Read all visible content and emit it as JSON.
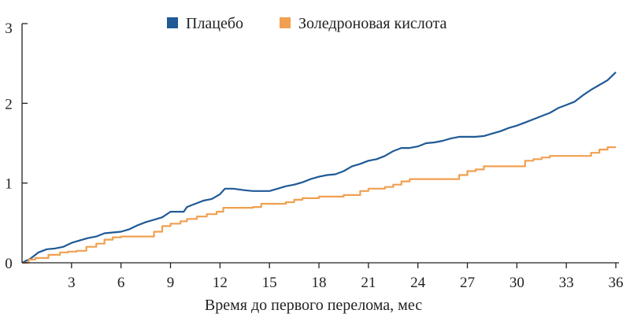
{
  "chart_data": {
    "type": "line",
    "title": "",
    "xlabel": "Время до первого перелома, мес",
    "ylabel": "",
    "xlim": [
      0,
      36
    ],
    "ylim": [
      0,
      3
    ],
    "x_ticks": [
      3,
      6,
      9,
      12,
      15,
      18,
      21,
      24,
      27,
      30,
      33,
      36
    ],
    "y_ticks": [
      0,
      1,
      2,
      3
    ],
    "legend_position": "top",
    "series": [
      {
        "name": "Плацебо",
        "color": "#1f5a96",
        "step": false,
        "points": [
          [
            0,
            0
          ],
          [
            0.5,
            0.05
          ],
          [
            1,
            0.13
          ],
          [
            1.5,
            0.17
          ],
          [
            2,
            0.18
          ],
          [
            2.5,
            0.2
          ],
          [
            3,
            0.25
          ],
          [
            3.5,
            0.28
          ],
          [
            4,
            0.31
          ],
          [
            4.5,
            0.33
          ],
          [
            5,
            0.37
          ],
          [
            5.5,
            0.38
          ],
          [
            6,
            0.39
          ],
          [
            6.5,
            0.42
          ],
          [
            7,
            0.47
          ],
          [
            7.5,
            0.51
          ],
          [
            8,
            0.54
          ],
          [
            8.5,
            0.57
          ],
          [
            9,
            0.64
          ],
          [
            9.8,
            0.64
          ],
          [
            10,
            0.7
          ],
          [
            10.5,
            0.74
          ],
          [
            11,
            0.78
          ],
          [
            11.5,
            0.8
          ],
          [
            12,
            0.86
          ],
          [
            12.3,
            0.93
          ],
          [
            12.8,
            0.93
          ],
          [
            13.5,
            0.91
          ],
          [
            14,
            0.9
          ],
          [
            15,
            0.9
          ],
          [
            15.5,
            0.93
          ],
          [
            16,
            0.96
          ],
          [
            16.5,
            0.98
          ],
          [
            17,
            1.01
          ],
          [
            17.5,
            1.05
          ],
          [
            18,
            1.08
          ],
          [
            18.5,
            1.1
          ],
          [
            19,
            1.11
          ],
          [
            19.5,
            1.15
          ],
          [
            20,
            1.21
          ],
          [
            20.5,
            1.24
          ],
          [
            21,
            1.28
          ],
          [
            21.5,
            1.3
          ],
          [
            22,
            1.34
          ],
          [
            22.5,
            1.4
          ],
          [
            23,
            1.44
          ],
          [
            23.5,
            1.44
          ],
          [
            24,
            1.46
          ],
          [
            24.5,
            1.5
          ],
          [
            25,
            1.51
          ],
          [
            25.5,
            1.53
          ],
          [
            26,
            1.56
          ],
          [
            26.5,
            1.58
          ],
          [
            27,
            1.58
          ],
          [
            27.5,
            1.58
          ],
          [
            28,
            1.59
          ],
          [
            28.5,
            1.62
          ],
          [
            29,
            1.65
          ],
          [
            29.5,
            1.69
          ],
          [
            30,
            1.72
          ],
          [
            30.5,
            1.76
          ],
          [
            31,
            1.8
          ],
          [
            31.5,
            1.84
          ],
          [
            32,
            1.88
          ],
          [
            32.5,
            1.94
          ],
          [
            33,
            1.98
          ],
          [
            33.5,
            2.02
          ],
          [
            34,
            2.1
          ],
          [
            34.5,
            2.17
          ],
          [
            35,
            2.23
          ],
          [
            35.5,
            2.29
          ],
          [
            36,
            2.39
          ]
        ]
      },
      {
        "name": "Золедроновая кислота",
        "color": "#f0a050",
        "step": true,
        "points": [
          [
            0,
            0
          ],
          [
            0.4,
            0.04
          ],
          [
            0.8,
            0.06
          ],
          [
            1.6,
            0.1
          ],
          [
            2.3,
            0.13
          ],
          [
            2.8,
            0.14
          ],
          [
            3.3,
            0.15
          ],
          [
            3.9,
            0.2
          ],
          [
            4.5,
            0.24
          ],
          [
            5,
            0.29
          ],
          [
            5.5,
            0.32
          ],
          [
            6,
            0.33
          ],
          [
            7.5,
            0.33
          ],
          [
            8,
            0.39
          ],
          [
            8.5,
            0.46
          ],
          [
            9,
            0.49
          ],
          [
            9.6,
            0.52
          ],
          [
            10,
            0.55
          ],
          [
            10.6,
            0.58
          ],
          [
            11.2,
            0.61
          ],
          [
            11.8,
            0.64
          ],
          [
            12.2,
            0.69
          ],
          [
            14,
            0.7
          ],
          [
            14.5,
            0.74
          ],
          [
            16,
            0.76
          ],
          [
            16.5,
            0.79
          ],
          [
            17,
            0.81
          ],
          [
            18,
            0.83
          ],
          [
            19.5,
            0.85
          ],
          [
            20.5,
            0.9
          ],
          [
            21,
            0.93
          ],
          [
            22,
            0.95
          ],
          [
            22.5,
            0.98
          ],
          [
            23,
            1.02
          ],
          [
            23.5,
            1.05
          ],
          [
            26,
            1.05
          ],
          [
            26.5,
            1.1
          ],
          [
            27,
            1.15
          ],
          [
            27.5,
            1.17
          ],
          [
            28,
            1.21
          ],
          [
            30,
            1.21
          ],
          [
            30.5,
            1.28
          ],
          [
            31,
            1.3
          ],
          [
            31.5,
            1.32
          ],
          [
            32,
            1.34
          ],
          [
            34,
            1.34
          ],
          [
            34.5,
            1.38
          ],
          [
            35,
            1.42
          ],
          [
            35.5,
            1.45
          ],
          [
            36,
            1.45
          ]
        ]
      }
    ]
  }
}
